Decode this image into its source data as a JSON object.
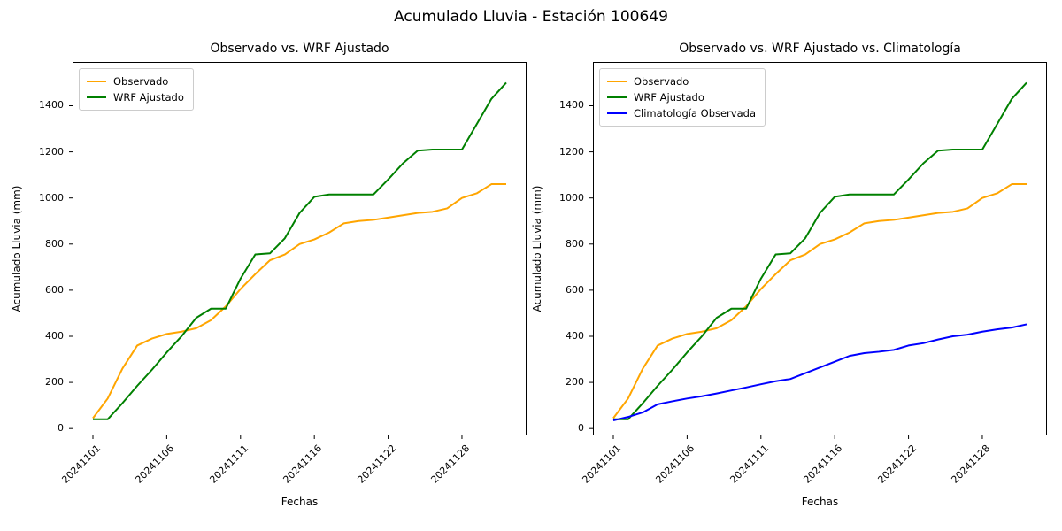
{
  "figure": {
    "suptitle": "Acumulado Lluvia - Estación 100649",
    "background_color": "#ffffff",
    "text_color": "#000000"
  },
  "chart_data": [
    {
      "type": "line",
      "title": "Observado vs. WRF Ajustado",
      "xlabel": "Fechas",
      "ylabel": "Acumulado Lluvia (mm)",
      "x": [
        0,
        1,
        2,
        3,
        4,
        5,
        6,
        7,
        8,
        9,
        10,
        11,
        12,
        13,
        14,
        15,
        16,
        17,
        18,
        19,
        20,
        21,
        22,
        23,
        24,
        25,
        26,
        27,
        28
      ],
      "x_tick_positions": [
        0,
        5,
        10,
        15,
        20,
        25
      ],
      "x_tick_labels": [
        "20241101",
        "20241106",
        "20241111",
        "20241116",
        "20241122",
        "20241128"
      ],
      "x_tick_rotation_deg": 45,
      "y_ticks": [
        0,
        200,
        400,
        600,
        800,
        1000,
        1200,
        1400
      ],
      "ylim": [
        -30,
        1590
      ],
      "grid": false,
      "legend_position": "upper left",
      "series": [
        {
          "name": "Observado",
          "color": "#FFA500",
          "values": [
            45,
            130,
            260,
            360,
            390,
            410,
            420,
            435,
            470,
            530,
            605,
            670,
            730,
            755,
            800,
            820,
            850,
            890,
            900,
            905,
            915,
            925,
            935,
            940,
            955,
            1000,
            1020,
            1060,
            1060
          ]
        },
        {
          "name": "WRF Ajustado",
          "color": "#008000",
          "values": [
            40,
            40,
            110,
            185,
            255,
            330,
            400,
            480,
            520,
            520,
            650,
            755,
            760,
            825,
            935,
            1005,
            1015,
            1015,
            1015,
            1015,
            1080,
            1150,
            1205,
            1210,
            1210,
            1210,
            1320,
            1430,
            1500
          ]
        }
      ]
    },
    {
      "type": "line",
      "title": "Observado vs. WRF Ajustado vs. Climatología",
      "xlabel": "Fechas",
      "ylabel": "Acumulado Lluvia (mm)",
      "x": [
        0,
        1,
        2,
        3,
        4,
        5,
        6,
        7,
        8,
        9,
        10,
        11,
        12,
        13,
        14,
        15,
        16,
        17,
        18,
        19,
        20,
        21,
        22,
        23,
        24,
        25,
        26,
        27,
        28
      ],
      "x_tick_positions": [
        0,
        5,
        10,
        15,
        20,
        25
      ],
      "x_tick_labels": [
        "20241101",
        "20241106",
        "20241111",
        "20241116",
        "20241122",
        "20241128"
      ],
      "x_tick_rotation_deg": 45,
      "y_ticks": [
        0,
        200,
        400,
        600,
        800,
        1000,
        1200,
        1400
      ],
      "ylim": [
        -30,
        1590
      ],
      "grid": false,
      "legend_position": "upper left",
      "series": [
        {
          "name": "Observado",
          "color": "#FFA500",
          "values": [
            45,
            130,
            260,
            360,
            390,
            410,
            420,
            435,
            470,
            530,
            605,
            670,
            730,
            755,
            800,
            820,
            850,
            890,
            900,
            905,
            915,
            925,
            935,
            940,
            955,
            1000,
            1020,
            1060,
            1060
          ]
        },
        {
          "name": "WRF Ajustado",
          "color": "#008000",
          "values": [
            40,
            40,
            110,
            185,
            255,
            330,
            400,
            480,
            520,
            520,
            650,
            755,
            760,
            825,
            935,
            1005,
            1015,
            1015,
            1015,
            1015,
            1080,
            1150,
            1205,
            1210,
            1210,
            1210,
            1320,
            1430,
            1500
          ]
        },
        {
          "name": "Climatología Observada",
          "color": "#0000FF",
          "values": [
            35,
            50,
            70,
            105,
            118,
            130,
            140,
            152,
            165,
            178,
            192,
            205,
            215,
            240,
            265,
            290,
            315,
            327,
            333,
            341,
            360,
            370,
            386,
            400,
            407,
            420,
            430,
            438,
            452
          ]
        }
      ]
    }
  ]
}
